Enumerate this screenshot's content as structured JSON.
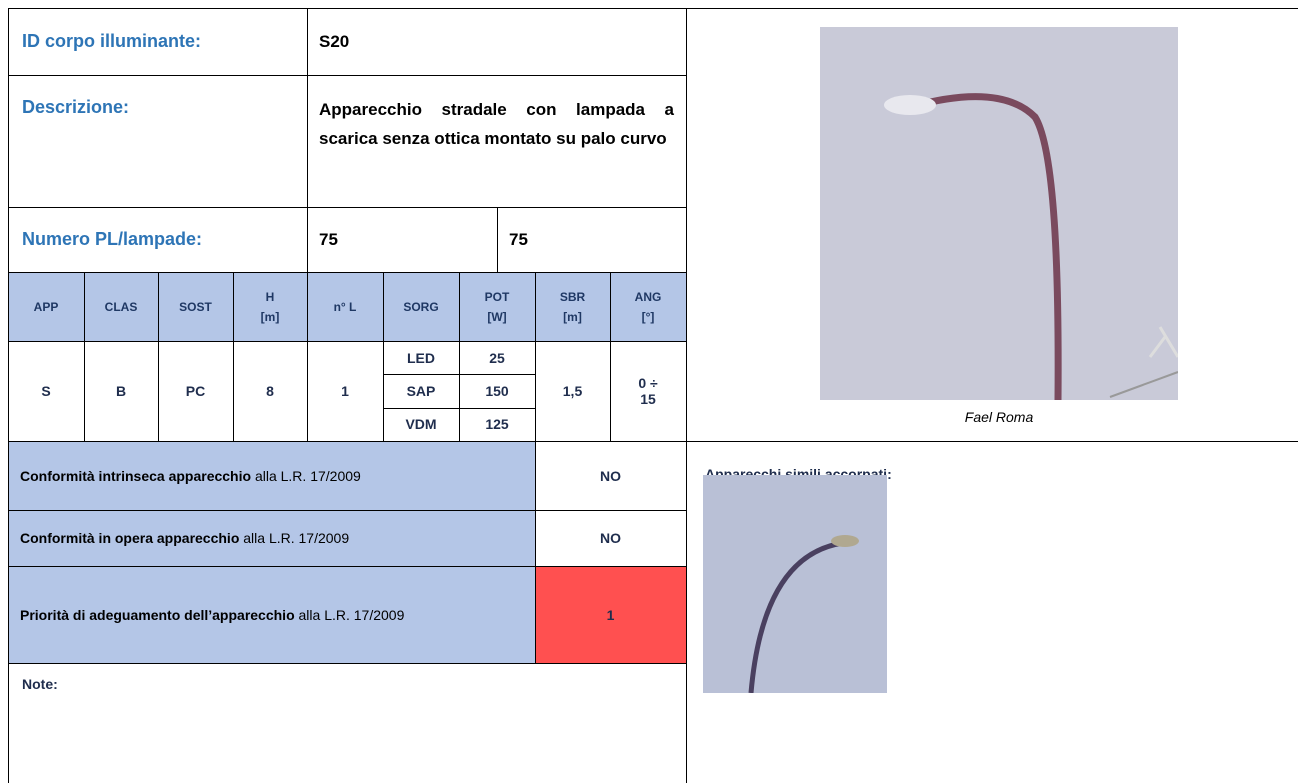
{
  "header": {
    "id_label": "ID corpo illuminante:",
    "id_value": "S20",
    "description_label": "Descrizione:",
    "description_value": "Apparecchio stradale con lampada a scarica senza ottica montato su palo curvo",
    "number_label": "Numero PL/lampade:",
    "number_values": [
      "75",
      "75"
    ]
  },
  "table": {
    "headers": [
      [
        "APP"
      ],
      [
        "CLAS"
      ],
      [
        "SOST"
      ],
      [
        "H",
        "[m]"
      ],
      [
        "n° L"
      ],
      [
        "SORG"
      ],
      [
        "POT",
        "[W]"
      ],
      [
        "SBR",
        "[m]"
      ],
      [
        "ANG",
        "[°]"
      ]
    ],
    "row": {
      "app": "S",
      "clas": "B",
      "sost": "PC",
      "h": "8",
      "n_l": "1",
      "sources": [
        {
          "name": "LED",
          "power": "25"
        },
        {
          "name": "SAP",
          "power": "150"
        },
        {
          "name": "VDM",
          "power": "125"
        }
      ],
      "sbr": "1,5",
      "ang": "0 ÷ 15"
    }
  },
  "conformity": [
    {
      "bold": "Conformità intrinseca apparecchio",
      "text": " alla L.R. 17/2009",
      "value": "NO"
    },
    {
      "bold": "Conformità in opera apparecchio",
      "text": " alla L.R. 17/2009",
      "value": "NO"
    },
    {
      "bold": "Priorità di adeguamento dell’apparecchio",
      "text": " alla L.R. 17/2009",
      "value": "1"
    }
  ],
  "note_label": "Note:",
  "photo_caption": "Fael Roma",
  "similar_label": "Apparecchi simili accorpati:"
}
